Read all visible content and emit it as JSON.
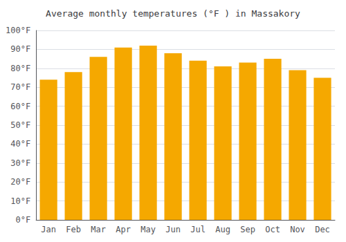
{
  "chart_data": {
    "type": "bar",
    "title": "Average monthly temperatures (°F ) in Massakory",
    "categories": [
      "Jan",
      "Feb",
      "Mar",
      "Apr",
      "May",
      "Jun",
      "Jul",
      "Aug",
      "Sep",
      "Oct",
      "Nov",
      "Dec"
    ],
    "values": [
      74,
      78,
      86,
      91,
      92,
      88,
      84,
      81,
      83,
      85,
      79,
      75
    ],
    "color": "#F5A800",
    "ylim": [
      0,
      100
    ],
    "yticks": [
      {
        "value": 0,
        "label": "0°F"
      },
      {
        "value": 10,
        "label": "10°F"
      },
      {
        "value": 20,
        "label": "20°F"
      },
      {
        "value": 30,
        "label": "30°F"
      },
      {
        "value": 40,
        "label": "40°F"
      },
      {
        "value": 50,
        "label": "50°F"
      },
      {
        "value": 60,
        "label": "60°F"
      },
      {
        "value": 70,
        "label": "70°F"
      },
      {
        "value": 80,
        "label": "80°F"
      },
      {
        "value": 90,
        "label": "90°F"
      },
      {
        "value": 100,
        "label": "100°F"
      }
    ],
    "grid": true
  }
}
